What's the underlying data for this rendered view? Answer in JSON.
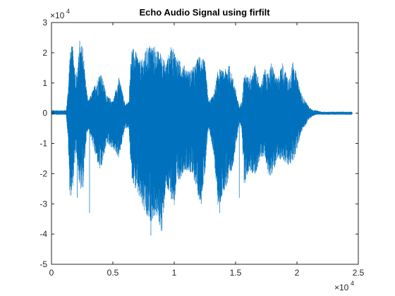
{
  "chart_data": {
    "type": "line",
    "title": "Echo Audio Signal using firfilt",
    "xlabel": "",
    "ylabel": "",
    "xlim": [
      0,
      25000
    ],
    "ylim": [
      -50000,
      30000
    ],
    "x_ticks": [
      0,
      5000,
      10000,
      15000,
      20000,
      25000
    ],
    "x_tick_labels": [
      "0",
      "0.5",
      "1",
      "1.5",
      "2",
      "2.5"
    ],
    "y_ticks": [
      -50000,
      -40000,
      -30000,
      -20000,
      -10000,
      0,
      10000,
      20000,
      30000
    ],
    "y_tick_labels": [
      "-5",
      "-4",
      "-3",
      "-2",
      "-1",
      "0",
      "1",
      "2",
      "3"
    ],
    "x_exponent": {
      "base": "×10",
      "power": "4"
    },
    "y_exponent": {
      "base": "×10",
      "power": "4"
    },
    "grid": false,
    "legend": "none",
    "series": [
      {
        "color": "#0072BD",
        "envelope": {
          "x": [
            0,
            1200,
            1350,
            1500,
            1700,
            2000,
            2300,
            2550,
            2800,
            3000,
            3500,
            4000,
            4500,
            5000,
            5500,
            6000,
            6300,
            6500,
            6800,
            7300,
            7800,
            8100,
            8500,
            9000,
            9300,
            9700,
            10000,
            10300,
            10800,
            11200,
            11700,
            12100,
            12500,
            12800,
            13200,
            13600,
            14000,
            14500,
            14900,
            15300,
            15500,
            15700,
            16100,
            16600,
            17000,
            17400,
            17600,
            17900,
            18400,
            18800,
            19300,
            19700,
            20000,
            20400,
            20700,
            21000,
            21300,
            21600,
            22000,
            24500
          ],
          "upper": [
            1000,
            1000,
            8000,
            20000,
            23000,
            12000,
            22000,
            23000,
            10000,
            4000,
            9000,
            14000,
            6000,
            4000,
            12000,
            3000,
            4000,
            22000,
            21000,
            17000,
            22000,
            23000,
            21000,
            20000,
            16000,
            22000,
            21000,
            18000,
            16000,
            14000,
            16000,
            20000,
            17000,
            4000,
            6000,
            15000,
            14000,
            16000,
            10000,
            2000,
            4000,
            13000,
            12000,
            16000,
            9000,
            15000,
            13000,
            17000,
            11000,
            17000,
            11000,
            18000,
            12000,
            6000,
            4000,
            2000,
            1000,
            1000,
            500,
            500
          ],
          "lower": [
            -500,
            -500,
            -9000,
            -28000,
            -27000,
            -12000,
            -25000,
            -27000,
            -10000,
            -5000,
            -13000,
            -20000,
            -10000,
            -12000,
            -15000,
            -5000,
            -5000,
            -21000,
            -25000,
            -30000,
            -36000,
            -36000,
            -34000,
            -40000,
            -25000,
            -28000,
            -31000,
            -24000,
            -19000,
            -19000,
            -23000,
            -30000,
            -21000,
            -5000,
            -13000,
            -33000,
            -26000,
            -23000,
            -15000,
            -3000,
            -5000,
            -24000,
            -19000,
            -21000,
            -15000,
            -14000,
            -20000,
            -21000,
            -16000,
            -15000,
            -18000,
            -16000,
            -12000,
            -6000,
            -4000,
            -2000,
            -1000,
            -500,
            -500,
            -500
          ]
        },
        "peaks": [
          {
            "x": 2300,
            "y": 24000
          },
          {
            "x": 2100,
            "y": -28000
          },
          {
            "x": 3100,
            "y": -33000
          },
          {
            "x": 8100,
            "y": -40500
          },
          {
            "x": 9000,
            "y": -39000
          },
          {
            "x": 9700,
            "y": -26000
          },
          {
            "x": 12200,
            "y": -30000
          },
          {
            "x": 13700,
            "y": -33000
          },
          {
            "x": 8400,
            "y": 22000
          },
          {
            "x": 15300,
            "y": -28000
          }
        ]
      }
    ]
  }
}
